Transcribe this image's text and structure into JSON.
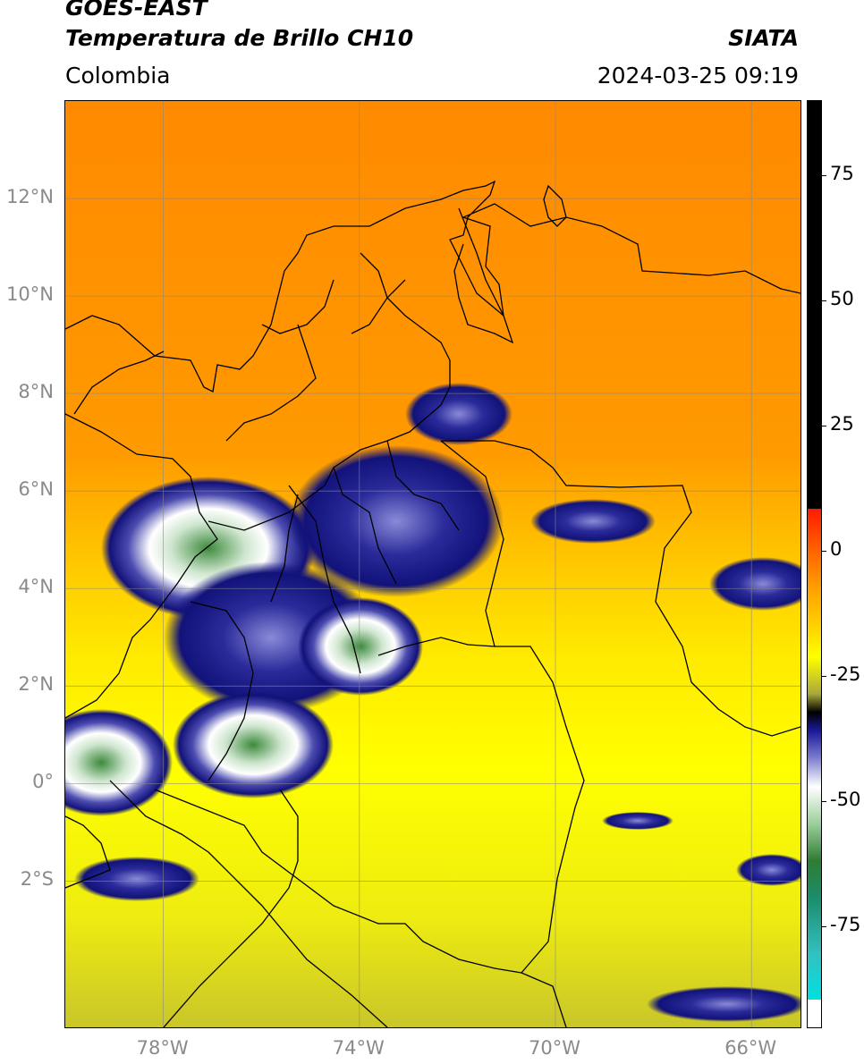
{
  "header": {
    "satellite": "GOES-EAST",
    "product": "Temperatura de Brillo CH10",
    "region": "Colombia",
    "agency": "SIATA",
    "datetime": "2024-03-25 09:19"
  },
  "map": {
    "lat_labels": [
      "12°N",
      "10°N",
      "8°N",
      "6°N",
      "4°N",
      "2°N",
      "0°",
      "2°S"
    ],
    "lon_labels": [
      "78°W",
      "74°W",
      "70°W",
      "66°W"
    ],
    "lat_values": [
      12,
      10,
      8,
      6,
      4,
      2,
      0,
      -2
    ],
    "lon_values": [
      -78,
      -74,
      -70,
      -66
    ],
    "extent": {
      "lon_min": -80,
      "lon_max": -65,
      "lat_min": -5,
      "lat_max": 14
    },
    "gridlines": true,
    "colors": {
      "warm": "#ff8c00",
      "mid": "#ffff00",
      "deep_cloud": "#1a1a8c",
      "cold_top": "#2e8b57",
      "border": "#000000"
    }
  },
  "colorbar": {
    "tick_labels": [
      "75",
      "50",
      "25",
      "0",
      "-25",
      "-50",
      "-75"
    ],
    "tick_values": [
      75,
      50,
      25,
      0,
      -25,
      -50,
      -75
    ],
    "range": [
      -95,
      90
    ]
  }
}
